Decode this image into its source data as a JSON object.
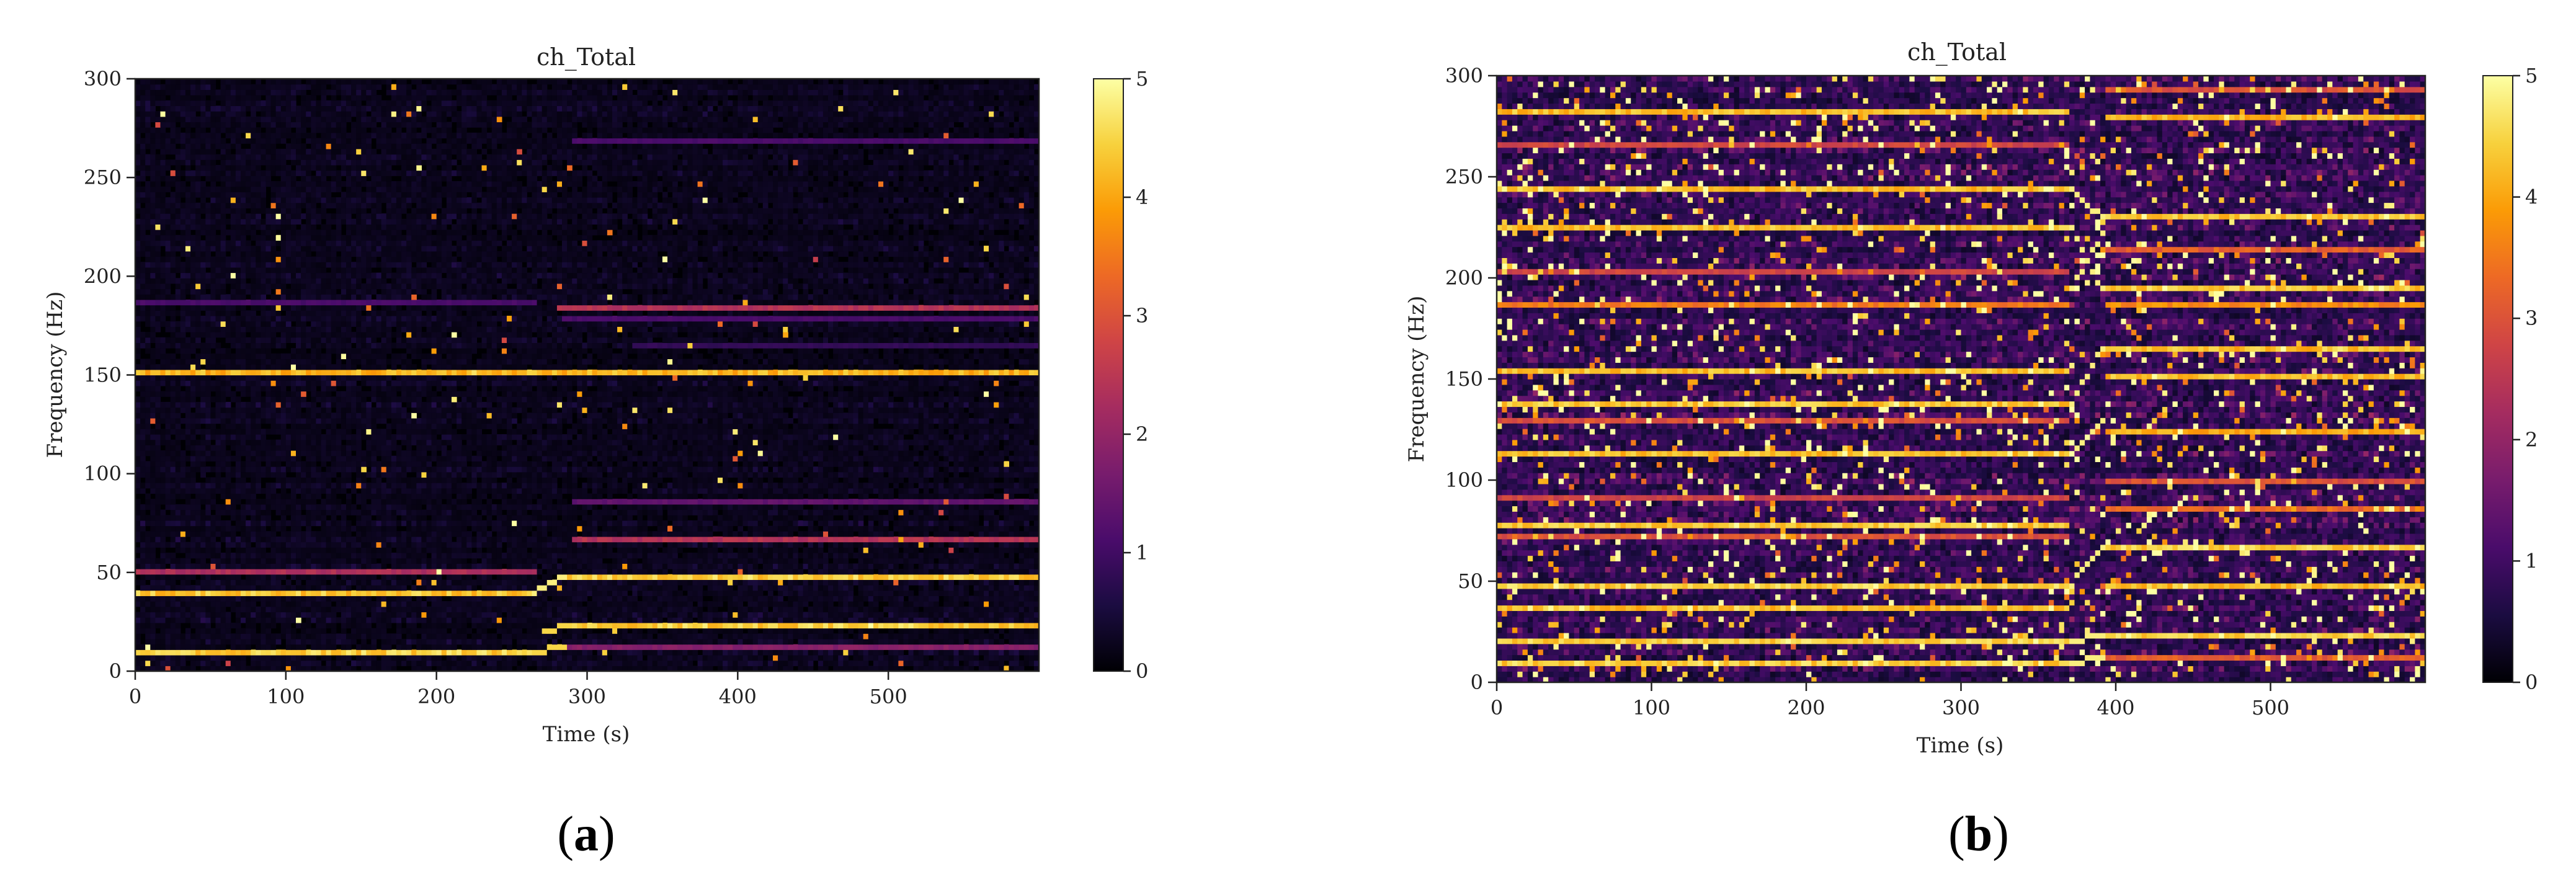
{
  "colors": {
    "cmap": [
      "#000004",
      "#1b0c41",
      "#4a0c6b",
      "#781c6d",
      "#a52c60",
      "#cf4446",
      "#ed6925",
      "#fb9b06",
      "#f7d13d",
      "#fcffa4"
    ],
    "background": "#ffffff",
    "axis": "#222222"
  },
  "chart_data": [
    {
      "type": "heatmap",
      "panel_label": "a",
      "title": "ch_Total",
      "xlabel": "Time (s)",
      "ylabel": "Frequency (Hz)",
      "xlim": [
        0,
        600
      ],
      "ylim": [
        0,
        300
      ],
      "xticks": [
        0,
        100,
        200,
        300,
        400,
        500
      ],
      "yticks": [
        0,
        50,
        100,
        150,
        200,
        250,
        300
      ],
      "colorbar": {
        "vmin": 0,
        "vmax": 5,
        "ticks": [
          0,
          1,
          2,
          3,
          4,
          5
        ]
      },
      "background_level": 0.25,
      "noise_level": 0.5,
      "hot_fraction": 0.01,
      "transition": {
        "start": 265,
        "end": 285
      },
      "tones": [
        {
          "freq": 150,
          "t0": 0,
          "t1": 600,
          "level": 4.5
        },
        {
          "freq": 50,
          "t0": 0,
          "t1": 265,
          "level": 2.5
        },
        {
          "freq": 40,
          "t0": 0,
          "t1": 265,
          "level": 4.7
        },
        {
          "freq": 10,
          "t0": 0,
          "t1": 265,
          "level": 4.8
        },
        {
          "freq": 48,
          "t0": 285,
          "t1": 600,
          "level": 4.8
        },
        {
          "freq": 24,
          "t0": 285,
          "t1": 600,
          "level": 4.8
        },
        {
          "freq": 12,
          "t0": 285,
          "t1": 600,
          "level": 2.0
        },
        {
          "freq": 68,
          "t0": 290,
          "t1": 600,
          "level": 2.6
        },
        {
          "freq": 85,
          "t0": 290,
          "t1": 600,
          "level": 1.5
        },
        {
          "freq": 183,
          "t0": 280,
          "t1": 600,
          "level": 2.6
        },
        {
          "freq": 186,
          "t0": 0,
          "t1": 265,
          "level": 1.2
        },
        {
          "freq": 178,
          "t0": 285,
          "t1": 600,
          "level": 1.2
        },
        {
          "freq": 268,
          "t0": 290,
          "t1": 600,
          "level": 1.2
        },
        {
          "freq": 165,
          "t0": 330,
          "t1": 600,
          "level": 0.9
        }
      ],
      "sweeps": [
        {
          "t0": 265,
          "t1": 285,
          "f0": 40,
          "f1": 48,
          "level": 4.8
        },
        {
          "t0": 265,
          "t1": 285,
          "f0": 10,
          "f1": 12,
          "level": 4.5
        },
        {
          "t0": 270,
          "t1": 290,
          "f0": 20,
          "f1": 24,
          "level": 4.5
        }
      ]
    },
    {
      "type": "heatmap",
      "panel_label": "b",
      "title": "ch_Total",
      "xlabel": "Time (s)",
      "ylabel": "Frequency (Hz)",
      "xlim": [
        0,
        600
      ],
      "ylim": [
        0,
        300
      ],
      "xticks": [
        0,
        100,
        200,
        300,
        400,
        500
      ],
      "yticks": [
        0,
        50,
        100,
        150,
        200,
        250,
        300
      ],
      "colorbar": {
        "vmin": 0,
        "vmax": 5,
        "ticks": [
          0,
          1,
          2,
          3,
          4,
          5
        ]
      },
      "background_level": 1.0,
      "noise_level": 1.6,
      "hot_fraction": 0.09,
      "transition": {
        "start": 370,
        "end": 395
      },
      "tones": [
        {
          "freq": 281,
          "t0": 0,
          "t1": 370,
          "level": 4.6
        },
        {
          "freq": 266,
          "t0": 0,
          "t1": 370,
          "level": 3.0
        },
        {
          "freq": 243,
          "t0": 0,
          "t1": 370,
          "level": 4.6
        },
        {
          "freq": 224,
          "t0": 0,
          "t1": 370,
          "level": 4.6
        },
        {
          "freq": 202,
          "t0": 0,
          "t1": 370,
          "level": 3.0
        },
        {
          "freq": 186,
          "t0": 0,
          "t1": 370,
          "level": 3.8
        },
        {
          "freq": 154,
          "t0": 0,
          "t1": 370,
          "level": 4.6
        },
        {
          "freq": 138,
          "t0": 0,
          "t1": 370,
          "level": 4.7
        },
        {
          "freq": 129,
          "t0": 0,
          "t1": 370,
          "level": 3.2
        },
        {
          "freq": 112,
          "t0": 0,
          "t1": 370,
          "level": 4.6
        },
        {
          "freq": 91,
          "t0": 0,
          "t1": 370,
          "level": 3.0
        },
        {
          "freq": 78,
          "t0": 0,
          "t1": 370,
          "level": 4.7
        },
        {
          "freq": 72,
          "t0": 0,
          "t1": 370,
          "level": 3.2
        },
        {
          "freq": 49,
          "t0": 0,
          "t1": 370,
          "level": 4.8
        },
        {
          "freq": 38,
          "t0": 0,
          "t1": 370,
          "level": 4.6
        },
        {
          "freq": 20,
          "t0": 0,
          "t1": 370,
          "level": 4.8
        },
        {
          "freq": 9,
          "t0": 0,
          "t1": 370,
          "level": 4.8
        },
        {
          "freq": 293,
          "t0": 395,
          "t1": 600,
          "level": 3.2
        },
        {
          "freq": 279,
          "t0": 395,
          "t1": 600,
          "level": 4.5
        },
        {
          "freq": 230,
          "t0": 395,
          "t1": 600,
          "level": 4.7
        },
        {
          "freq": 215,
          "t0": 395,
          "t1": 600,
          "level": 3.4
        },
        {
          "freq": 194,
          "t0": 395,
          "t1": 600,
          "level": 4.7
        },
        {
          "freq": 186,
          "t0": 395,
          "t1": 600,
          "level": 4.0
        },
        {
          "freq": 166,
          "t0": 395,
          "t1": 600,
          "level": 4.6
        },
        {
          "freq": 150,
          "t0": 395,
          "t1": 600,
          "level": 4.6
        },
        {
          "freq": 124,
          "t0": 395,
          "t1": 600,
          "level": 4.4
        },
        {
          "freq": 100,
          "t0": 395,
          "t1": 600,
          "level": 3.2
        },
        {
          "freq": 85,
          "t0": 395,
          "t1": 600,
          "level": 3.6
        },
        {
          "freq": 67,
          "t0": 395,
          "t1": 600,
          "level": 4.8
        },
        {
          "freq": 48,
          "t0": 395,
          "t1": 600,
          "level": 4.6
        },
        {
          "freq": 24,
          "t0": 395,
          "t1": 600,
          "level": 4.8
        },
        {
          "freq": 13,
          "t0": 395,
          "t1": 600,
          "level": 3.4
        }
      ],
      "sweeps": [
        {
          "t0": 370,
          "t1": 392,
          "f0": 243,
          "f1": 230,
          "level": 4.8
        },
        {
          "t0": 370,
          "t1": 392,
          "f0": 195,
          "f1": 222,
          "level": 4.8
        },
        {
          "t0": 370,
          "t1": 392,
          "f0": 224,
          "f1": 194,
          "level": 4.8
        },
        {
          "t0": 370,
          "t1": 392,
          "f0": 138,
          "f1": 166,
          "level": 4.8
        },
        {
          "t0": 370,
          "t1": 392,
          "f0": 112,
          "f1": 130,
          "level": 4.8
        },
        {
          "t0": 370,
          "t1": 392,
          "f0": 49,
          "f1": 67,
          "level": 4.8
        },
        {
          "t0": 370,
          "t1": 392,
          "f0": 20,
          "f1": 24,
          "level": 4.8
        },
        {
          "t0": 370,
          "t1": 392,
          "f0": 9,
          "f1": 13,
          "level": 4.8
        }
      ]
    }
  ]
}
